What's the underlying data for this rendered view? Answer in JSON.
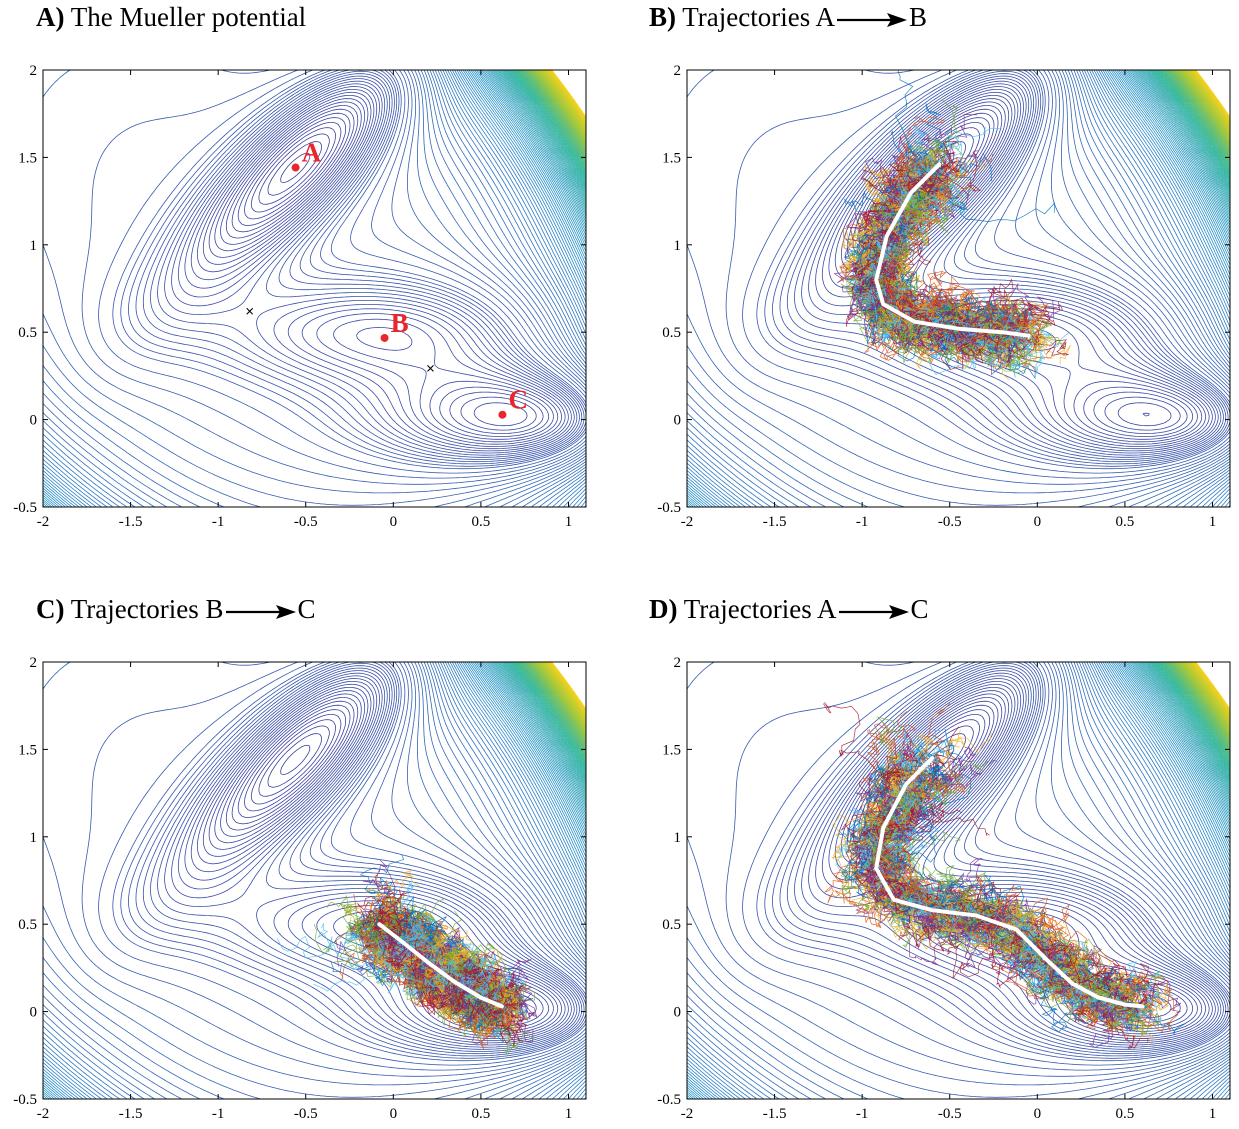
{
  "panels": [
    {
      "id": "A",
      "label": "A)",
      "title_pre": "The Mueller potential",
      "title_post": ""
    },
    {
      "id": "B",
      "label": "B)",
      "title_pre": "Trajectories A",
      "title_post": "B"
    },
    {
      "id": "C",
      "label": "C)",
      "title_pre": "Trajectories B",
      "title_post": "C"
    },
    {
      "id": "D",
      "label": "D)",
      "title_pre": "Trajectories A",
      "title_post": "C"
    }
  ],
  "chart_data": [
    {
      "type": "contour",
      "title": "A) The Mueller potential",
      "xlim": [
        -2,
        1.1
      ],
      "ylim": [
        -0.5,
        2
      ],
      "x_ticks": [
        "-2",
        "-1.5",
        "-1",
        "-0.5",
        "0",
        "0.5",
        "1"
      ],
      "y_ticks": [
        "-0.5",
        "0",
        "0.5",
        "1",
        "1.5",
        "2"
      ],
      "colormap": [
        "#3b3fa0",
        "#2a8fd0",
        "#2bb59a",
        "#a4c83a",
        "#f6d21d"
      ],
      "minima": [
        {
          "label": "A",
          "x": -0.558,
          "y": 1.442
        },
        {
          "label": "B",
          "x": -0.05,
          "y": 0.467
        },
        {
          "label": "C",
          "x": 0.623,
          "y": 0.028
        }
      ],
      "saddles": [
        {
          "x": -0.82,
          "y": 0.62
        },
        {
          "x": 0.212,
          "y": 0.293
        }
      ],
      "minima_color": "#e8262b"
    },
    {
      "type": "line",
      "title": "B) Trajectories A→B",
      "xlim": [
        -2,
        1.1
      ],
      "ylim": [
        -0.5,
        2
      ],
      "x_ticks": [
        "-2",
        "-1.5",
        "-1",
        "-0.5",
        "0",
        "0.5",
        "1"
      ],
      "y_ticks": [
        "-0.5",
        "0",
        "0.5",
        "1",
        "1.5",
        "2"
      ],
      "mean_path": [
        [
          -0.56,
          1.46
        ],
        [
          -0.72,
          1.3
        ],
        [
          -0.86,
          1.05
        ],
        [
          -0.92,
          0.8
        ],
        [
          -0.88,
          0.66
        ],
        [
          -0.7,
          0.56
        ],
        [
          -0.45,
          0.52
        ],
        [
          -0.2,
          0.5
        ],
        [
          -0.05,
          0.48
        ]
      ],
      "trajectory_colors": [
        "#0072bd",
        "#d95319",
        "#edb120",
        "#7e2f8e",
        "#77ac30",
        "#4dbeee",
        "#a2142f"
      ]
    },
    {
      "type": "line",
      "title": "C) Trajectories B→C",
      "xlim": [
        -2,
        1.1
      ],
      "ylim": [
        -0.5,
        2
      ],
      "x_ticks": [
        "-2",
        "-1.5",
        "-1",
        "-0.5",
        "0",
        "0.5",
        "1"
      ],
      "y_ticks": [
        "-0.5",
        "0",
        "0.5",
        "1",
        "1.5",
        "2"
      ],
      "mean_path": [
        [
          -0.08,
          0.5
        ],
        [
          0.05,
          0.4
        ],
        [
          0.2,
          0.28
        ],
        [
          0.35,
          0.17
        ],
        [
          0.5,
          0.08
        ],
        [
          0.62,
          0.03
        ]
      ],
      "trajectory_colors": [
        "#0072bd",
        "#d95319",
        "#edb120",
        "#7e2f8e",
        "#77ac30",
        "#4dbeee",
        "#a2142f"
      ]
    },
    {
      "type": "line",
      "title": "D) Trajectories A→C",
      "xlim": [
        -2,
        1.1
      ],
      "ylim": [
        -0.5,
        2
      ],
      "x_ticks": [
        "-2",
        "-1.5",
        "-1",
        "-0.5",
        "0",
        "0.5",
        "1"
      ],
      "y_ticks": [
        "-0.5",
        "0",
        "0.5",
        "1",
        "1.5",
        "2"
      ],
      "mean_path": [
        [
          -0.6,
          1.45
        ],
        [
          -0.75,
          1.3
        ],
        [
          -0.88,
          1.05
        ],
        [
          -0.92,
          0.82
        ],
        [
          -0.82,
          0.64
        ],
        [
          -0.6,
          0.58
        ],
        [
          -0.35,
          0.55
        ],
        [
          -0.12,
          0.47
        ],
        [
          0.05,
          0.3
        ],
        [
          0.2,
          0.16
        ],
        [
          0.35,
          0.08
        ],
        [
          0.5,
          0.04
        ],
        [
          0.6,
          0.03
        ]
      ],
      "trajectory_colors": [
        "#0072bd",
        "#d95319",
        "#edb120",
        "#7e2f8e",
        "#77ac30",
        "#4dbeee",
        "#a2142f"
      ]
    }
  ]
}
